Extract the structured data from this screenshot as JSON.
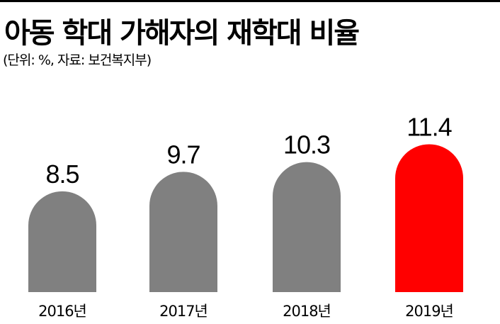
{
  "header": {
    "title": "아동 학대 가해자의 재학대 비율",
    "subtitle": "(단위: %, 자료: 보건복지부)"
  },
  "colors": {
    "normal": "#808080",
    "highlight": "#ff0000"
  },
  "chart_data": {
    "type": "bar",
    "categories": [
      "2016년",
      "2017년",
      "2018년",
      "2019년"
    ],
    "values": [
      8.5,
      9.7,
      10.3,
      11.4
    ],
    "value_labels": [
      "8.5",
      "9.7",
      "10.3",
      "11.4"
    ],
    "highlight_index": 3,
    "title": "아동 학대 가해자의 재학대 비율",
    "xlabel": "",
    "ylabel": "",
    "grid": false,
    "legend": "none"
  }
}
